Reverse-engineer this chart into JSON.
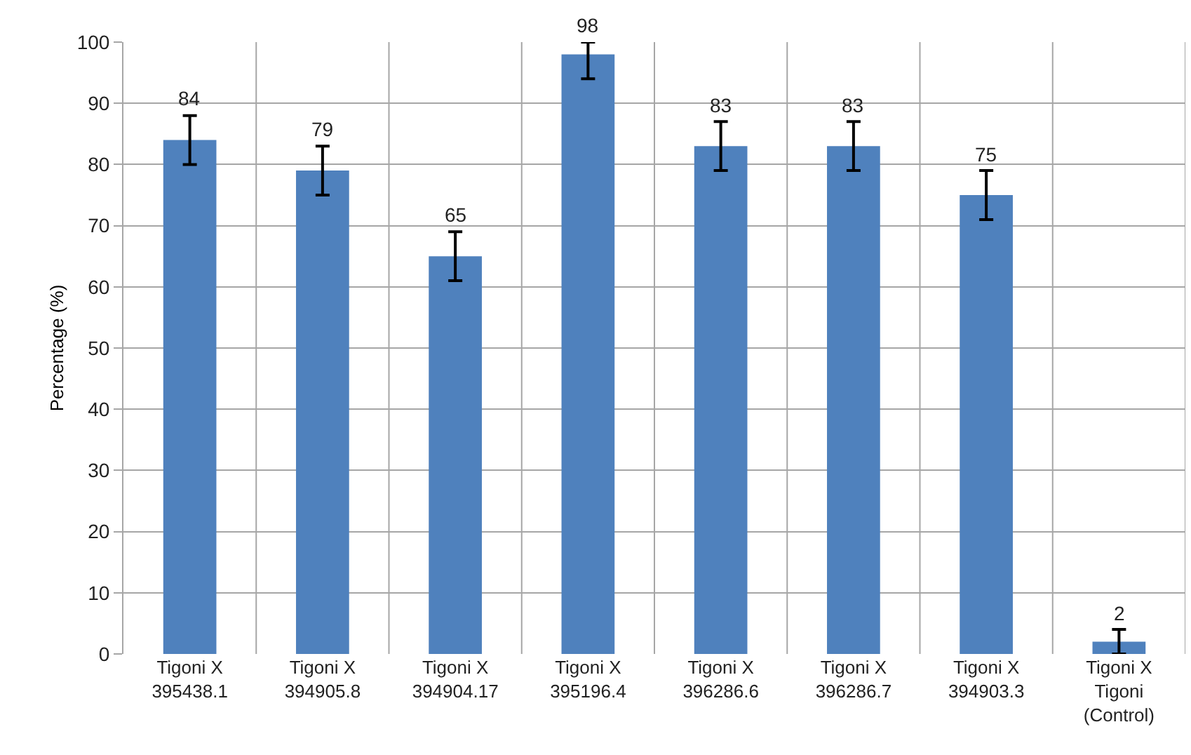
{
  "chart_data": {
    "type": "bar",
    "categories": [
      "Tigoni X\n395438.1",
      "Tigoni X\n394905.8",
      "Tigoni X\n394904.17",
      "Tigoni X\n395196.4",
      "Tigoni X\n396286.6",
      "Tigoni X\n396286.7",
      "Tigoni X\n394903.3",
      "Tigoni X\nTigoni\n(Control)"
    ],
    "values": [
      84,
      79,
      65,
      98,
      83,
      83,
      75,
      2
    ],
    "errors": [
      4,
      4,
      4,
      [
        94,
        100
      ],
      4,
      4,
      4,
      [
        0,
        4
      ]
    ],
    "color": "#4f81bd",
    "ylabel": "Percentage (%)",
    "ylim": [
      0,
      100
    ],
    "yticks": [
      0,
      10,
      20,
      30,
      40,
      50,
      60,
      70,
      80,
      90,
      100
    ],
    "grid": true,
    "data_labels": true
  }
}
